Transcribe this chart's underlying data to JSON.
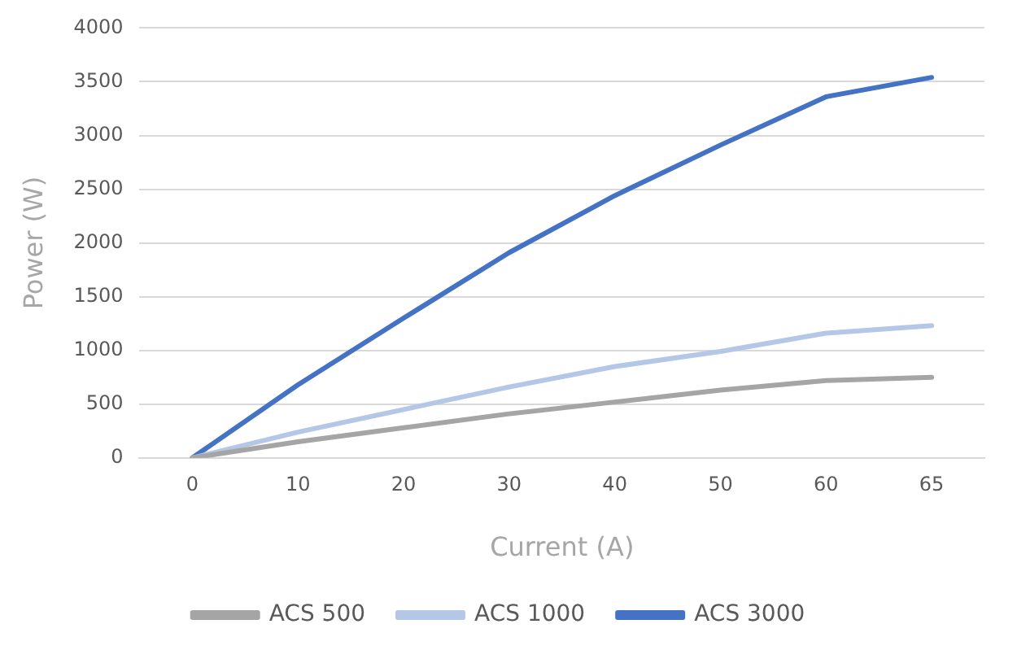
{
  "chart_data": {
    "type": "line",
    "xlabel": "Current (A)",
    "ylabel": "Power (W)",
    "categories": [
      "0",
      "10",
      "20",
      "30",
      "40",
      "50",
      "60",
      "65"
    ],
    "series": [
      {
        "name": "ACS 500",
        "color": "#a5a5a5",
        "values": [
          0,
          150,
          280,
          410,
          520,
          630,
          720,
          750
        ]
      },
      {
        "name": "ACS 1000",
        "color": "#b4c7e7",
        "values": [
          0,
          240,
          450,
          660,
          850,
          990,
          1160,
          1230
        ]
      },
      {
        "name": "ACS 3000",
        "color": "#4472c4",
        "values": [
          0,
          680,
          1300,
          1910,
          2440,
          2910,
          3360,
          3540
        ]
      }
    ],
    "ylim": [
      0,
      4000
    ],
    "yticks": [
      0,
      500,
      1000,
      1500,
      2000,
      2500,
      3000,
      3500,
      4000
    ],
    "grid": "y",
    "legend": "bottom",
    "marker": "none",
    "line_style": "solid"
  }
}
